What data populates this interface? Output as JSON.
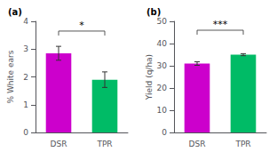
{
  "chart_data": [
    {
      "type": "bar",
      "title": "(a)",
      "categories": [
        "DSR",
        "TPR"
      ],
      "values": [
        2.85,
        1.9
      ],
      "errors": [
        0.25,
        0.28
      ],
      "colors": [
        "#CC00CC",
        "#00BB66"
      ],
      "ylabel": "% White ears",
      "ylim": [
        0,
        4
      ],
      "yticks": [
        0,
        1,
        2,
        3,
        4
      ],
      "grid": false,
      "annotations": [
        {
          "text": "*",
          "x": [
            "DSR",
            "TPR"
          ],
          "y": 3.65
        }
      ]
    },
    {
      "type": "bar",
      "title": "(b)",
      "categories": [
        "DSR",
        "TPR"
      ],
      "values": [
        31.0,
        35.0
      ],
      "errors": [
        0.8,
        0.45
      ],
      "colors": [
        "#CC00CC",
        "#00BB66"
      ],
      "ylabel": "Yield (q/ha)",
      "ylim": [
        0,
        50
      ],
      "yticks": [
        0,
        10,
        20,
        30,
        40,
        50
      ],
      "grid": false,
      "annotations": [
        {
          "text": "***",
          "x": [
            "DSR",
            "TPR"
          ],
          "y": 46
        }
      ]
    }
  ]
}
